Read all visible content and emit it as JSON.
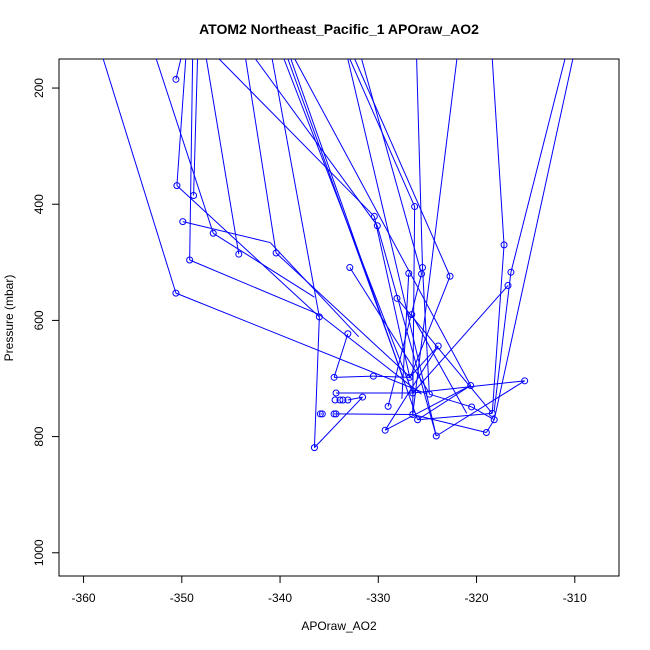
{
  "chart_data": {
    "type": "line",
    "title": "ATOM2 Northeast_Pacific_1 APOraw_AO2",
    "xlabel": "APOraw_AO2",
    "ylabel": "Pressure (mbar)",
    "xlim": [
      -362.5,
      -305.5
    ],
    "ylim": [
      1040,
      150
    ],
    "y_reversed": true,
    "grid": false,
    "x_ticks": [
      -360,
      -350,
      -340,
      -330,
      -320,
      -310
    ],
    "y_ticks": [
      200,
      400,
      600,
      800,
      1000
    ],
    "series_color": "#0000ff",
    "points": [
      {
        "x": -350.6,
        "y": 185
      },
      {
        "x": -350.5,
        "y": 368
      },
      {
        "x": -348.8,
        "y": 385
      },
      {
        "x": -349.9,
        "y": 430
      },
      {
        "x": -346.8,
        "y": 450
      },
      {
        "x": -344.2,
        "y": 486
      },
      {
        "x": -340.4,
        "y": 484
      },
      {
        "x": -349.2,
        "y": 496
      },
      {
        "x": -350.6,
        "y": 553
      },
      {
        "x": -330.4,
        "y": 421
      },
      {
        "x": -330.1,
        "y": 437
      },
      {
        "x": -326.3,
        "y": 404
      },
      {
        "x": -332.9,
        "y": 509
      },
      {
        "x": -336.0,
        "y": 594
      },
      {
        "x": -333.1,
        "y": 623
      },
      {
        "x": -326.9,
        "y": 519
      },
      {
        "x": -325.6,
        "y": 520
      },
      {
        "x": -325.5,
        "y": 509
      },
      {
        "x": -322.7,
        "y": 524
      },
      {
        "x": -328.1,
        "y": 562
      },
      {
        "x": -326.6,
        "y": 590
      },
      {
        "x": -317.2,
        "y": 470
      },
      {
        "x": -316.5,
        "y": 517
      },
      {
        "x": -316.8,
        "y": 540
      },
      {
        "x": -323.9,
        "y": 644
      },
      {
        "x": -315.1,
        "y": 704
      },
      {
        "x": -320.6,
        "y": 712
      },
      {
        "x": -334.5,
        "y": 698
      },
      {
        "x": -330.5,
        "y": 696
      },
      {
        "x": -326.8,
        "y": 698
      },
      {
        "x": -334.3,
        "y": 725
      },
      {
        "x": -331.6,
        "y": 732
      },
      {
        "x": -326.5,
        "y": 725
      },
      {
        "x": -324.8,
        "y": 727
      },
      {
        "x": -334.4,
        "y": 737
      },
      {
        "x": -333.9,
        "y": 737
      },
      {
        "x": -333.6,
        "y": 737
      },
      {
        "x": -333.1,
        "y": 737
      },
      {
        "x": -329.0,
        "y": 748
      },
      {
        "x": -320.5,
        "y": 749
      },
      {
        "x": -335.9,
        "y": 761
      },
      {
        "x": -335.7,
        "y": 761
      },
      {
        "x": -334.5,
        "y": 761
      },
      {
        "x": -334.3,
        "y": 761
      },
      {
        "x": -326.5,
        "y": 762
      },
      {
        "x": -326.0,
        "y": 771
      },
      {
        "x": -318.4,
        "y": 760
      },
      {
        "x": -318.2,
        "y": 771
      },
      {
        "x": -329.3,
        "y": 789
      },
      {
        "x": -319.0,
        "y": 793
      },
      {
        "x": -324.1,
        "y": 799
      },
      {
        "x": -336.5,
        "y": 819
      }
    ],
    "segments": [
      [
        -358.0,
        150,
        -350.6,
        553
      ],
      [
        -350.1,
        150,
        -350.6,
        185
      ],
      [
        -349.6,
        150,
        -350.5,
        368
      ],
      [
        -352.6,
        150,
        -346.8,
        450
      ],
      [
        -348.4,
        150,
        -348.8,
        385
      ],
      [
        -348.9,
        150,
        -349.2,
        496
      ],
      [
        -347.5,
        150,
        -344.2,
        486
      ],
      [
        -346.2,
        150,
        -330.4,
        421
      ],
      [
        -343.5,
        150,
        -340.4,
        484
      ],
      [
        -342.5,
        150,
        -330.1,
        437
      ],
      [
        -340.8,
        150,
        -336.0,
        594
      ],
      [
        -339.6,
        150,
        -326.5,
        725
      ],
      [
        -338.9,
        150,
        -326.0,
        771
      ],
      [
        -338.5,
        150,
        -320.6,
        712
      ],
      [
        -339.2,
        150,
        -327.5,
        698
      ],
      [
        -333.1,
        150,
        -324.1,
        799
      ],
      [
        -332.9,
        150,
        -326.3,
        404
      ],
      [
        -332.4,
        150,
        -322.7,
        524
      ],
      [
        -331.7,
        150,
        -325.6,
        520
      ],
      [
        -326.1,
        150,
        -325.5,
        509
      ],
      [
        -322.0,
        150,
        -326.5,
        762
      ],
      [
        -318.4,
        150,
        -317.2,
        470
      ],
      [
        -311.0,
        150,
        -316.5,
        517
      ],
      [
        -310.2,
        150,
        -318.2,
        771
      ],
      [
        -350.5,
        368,
        -336.0,
        594
      ],
      [
        -349.9,
        430,
        -341.0,
        466
      ],
      [
        -341.0,
        466,
        -332.0,
        628
      ],
      [
        -349.2,
        496,
        -336.0,
        590
      ],
      [
        -336.0,
        590,
        -325.6,
        727
      ],
      [
        -350.6,
        553,
        -325.0,
        727
      ],
      [
        -346.8,
        450,
        -336.5,
        560
      ],
      [
        -340.4,
        484,
        -326.6,
        700
      ],
      [
        -332.9,
        509,
        -324.8,
        725
      ],
      [
        -330.4,
        421,
        -326.8,
        698
      ],
      [
        -330.1,
        437,
        -324.1,
        799
      ],
      [
        -326.3,
        404,
        -326.5,
        760
      ],
      [
        -325.5,
        509,
        -324.8,
        727
      ],
      [
        -325.6,
        520,
        -329.0,
        748
      ],
      [
        -322.7,
        524,
        -326.8,
        700
      ],
      [
        -326.9,
        519,
        -327.6,
        735
      ],
      [
        -328.1,
        562,
        -318.4,
        760
      ],
      [
        -326.6,
        590,
        -321.0,
        760
      ],
      [
        -317.2,
        470,
        -318.4,
        760
      ],
      [
        -316.8,
        540,
        -326.5,
        725
      ],
      [
        -316.5,
        517,
        -318.2,
        755
      ],
      [
        -333.1,
        623,
        -334.5,
        698
      ],
      [
        -334.5,
        698,
        -330.5,
        696
      ],
      [
        -330.5,
        696,
        -326.8,
        698
      ],
      [
        -326.8,
        698,
        -323.9,
        644
      ],
      [
        -323.9,
        644,
        -329.3,
        789
      ],
      [
        -336.0,
        594,
        -336.5,
        819
      ],
      [
        -336.5,
        819,
        -331.6,
        732
      ],
      [
        -331.6,
        732,
        -333.1,
        737
      ],
      [
        -334.3,
        725,
        -326.5,
        725
      ],
      [
        -326.5,
        725,
        -315.1,
        704
      ],
      [
        -320.6,
        712,
        -326.0,
        771
      ],
      [
        -324.8,
        727,
        -320.5,
        749
      ],
      [
        -320.5,
        749,
        -318.2,
        771
      ],
      [
        -318.2,
        771,
        -319.0,
        793
      ],
      [
        -319.0,
        793,
        -326.5,
        762
      ],
      [
        -326.5,
        762,
        -334.3,
        761
      ],
      [
        -329.3,
        789,
        -320.6,
        712
      ],
      [
        -324.1,
        799,
        -315.1,
        704
      ],
      [
        -318.4,
        760,
        -326.0,
        771
      ],
      [
        -335.9,
        761,
        -335.7,
        761
      ],
      [
        -334.5,
        761,
        -334.3,
        761
      ]
    ]
  }
}
